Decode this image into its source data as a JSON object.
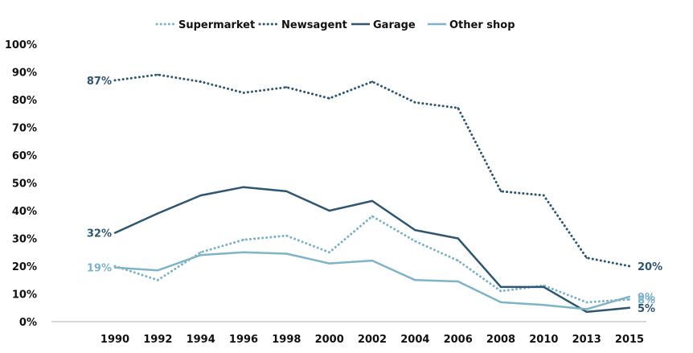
{
  "chart_data": {
    "type": "line",
    "title": "",
    "xlabel": "",
    "ylabel": "",
    "categories": [
      "1990",
      "1992",
      "1994",
      "1996",
      "1998",
      "2000",
      "2002",
      "2004",
      "2006",
      "2008",
      "2010",
      "2013",
      "2015"
    ],
    "ylim": [
      0,
      100
    ],
    "y_ticks": [
      "0%",
      "10%",
      "20%",
      "30%",
      "40%",
      "50%",
      "60%",
      "70%",
      "80%",
      "90%",
      "100%"
    ],
    "grid": false,
    "legend_position": "top-center",
    "series": [
      {
        "name": "Supermarket",
        "color": "#7fb3c8",
        "style": "dotted",
        "values": [
          20,
          15,
          25,
          29.5,
          31,
          25,
          38,
          29,
          22,
          11,
          13,
          7,
          8
        ],
        "labels": [
          {
            "index": 12,
            "text": "8%"
          }
        ]
      },
      {
        "name": "Newsagent",
        "color": "#2e5670",
        "style": "dotted",
        "values": [
          87,
          89,
          86.5,
          82.5,
          84.5,
          80.5,
          86.5,
          79,
          77,
          47,
          45.5,
          23,
          20
        ],
        "labels": [
          {
            "index": 0,
            "text": "87%"
          },
          {
            "index": 12,
            "text": "20%"
          }
        ]
      },
      {
        "name": "Garage",
        "color": "#2e5670",
        "style": "solid",
        "values": [
          32,
          39,
          45.5,
          48.5,
          47,
          40,
          43.5,
          33,
          30,
          12.5,
          12.5,
          3.5,
          5
        ],
        "labels": [
          {
            "index": 0,
            "text": "32%"
          },
          {
            "index": 12,
            "text": "5%"
          }
        ]
      },
      {
        "name": "Other shop",
        "color": "#7fb3c8",
        "style": "solid",
        "values": [
          19.5,
          18.5,
          24,
          25,
          24.5,
          21,
          22,
          15,
          14.5,
          7,
          6,
          4.5,
          9
        ],
        "labels": [
          {
            "index": 0,
            "text": "19%"
          },
          {
            "index": 12,
            "text": "9%"
          }
        ]
      }
    ]
  }
}
